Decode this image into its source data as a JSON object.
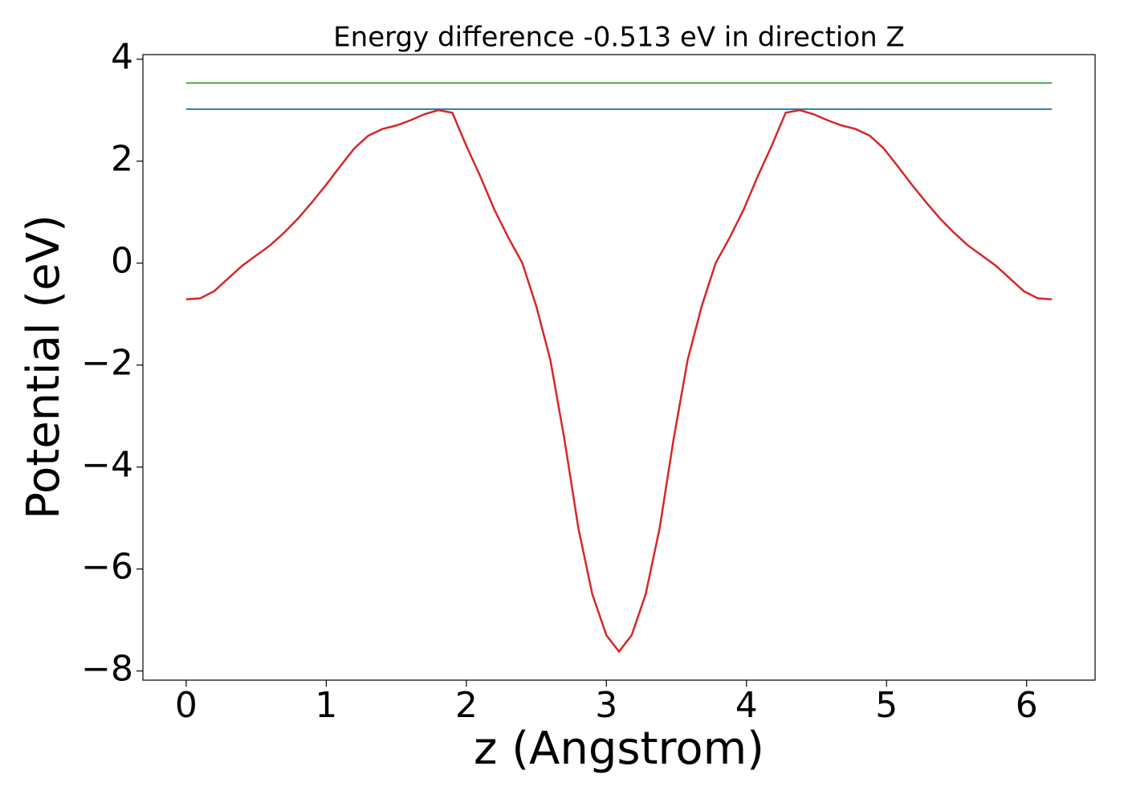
{
  "chart_data": {
    "type": "line",
    "title": "Energy difference -0.513 eV in direction Z",
    "xlabel": "z (Angstrom)",
    "ylabel": "Potential (eV)",
    "xlim": [
      -0.309,
      6.489
    ],
    "ylim": [
      -8.18,
      4.09
    ],
    "xticks": [
      0,
      1,
      2,
      3,
      4,
      5,
      6
    ],
    "yticks": [
      {
        "value": -8,
        "label": "−8"
      },
      {
        "value": -6,
        "label": "−6"
      },
      {
        "value": -4,
        "label": "−4"
      },
      {
        "value": -2,
        "label": "−2"
      },
      0,
      2,
      4
    ],
    "series": [
      {
        "color": "#d62728",
        "x": [
          0,
          0.1,
          0.2,
          0.3,
          0.4,
          0.5,
          0.6,
          0.7,
          0.8,
          0.9,
          1.0,
          1.1,
          1.2,
          1.3,
          1.4,
          1.5,
          1.6,
          1.7,
          1.8,
          1.9,
          2.0,
          2.1,
          2.2,
          2.3,
          2.4,
          2.5,
          2.6,
          2.7,
          2.8,
          2.9,
          3.0,
          3.09,
          3.18,
          3.28,
          3.38,
          3.48,
          3.58,
          3.68,
          3.78,
          3.88,
          3.98,
          4.08,
          4.18,
          4.28,
          4.38,
          4.48,
          4.58,
          4.68,
          4.78,
          4.88,
          4.98,
          5.08,
          5.18,
          5.28,
          5.38,
          5.48,
          5.58,
          5.68,
          5.78,
          5.88,
          5.98,
          6.08,
          6.18
        ],
        "values": [
          -0.71,
          -0.69,
          -0.55,
          -0.3,
          -0.05,
          0.15,
          0.35,
          0.6,
          0.88,
          1.2,
          1.54,
          1.9,
          2.25,
          2.5,
          2.63,
          2.7,
          2.8,
          2.92,
          3.0,
          2.95,
          2.3,
          1.7,
          1.05,
          0.5,
          0.0,
          -0.85,
          -1.9,
          -3.45,
          -5.2,
          -6.5,
          -7.3,
          -7.62,
          -7.3,
          -6.5,
          -5.2,
          -3.45,
          -1.9,
          -0.85,
          0.0,
          0.5,
          1.05,
          1.7,
          2.3,
          2.95,
          3.0,
          2.92,
          2.8,
          2.7,
          2.63,
          2.5,
          2.25,
          1.9,
          1.54,
          1.2,
          0.88,
          0.6,
          0.35,
          0.15,
          -0.05,
          -0.3,
          -0.55,
          -0.69,
          -0.71
        ]
      },
      {
        "color": "#1f77b4",
        "x": [
          0,
          6.18
        ],
        "values": [
          3.02,
          3.02
        ]
      },
      {
        "color": "#2ca02c",
        "x": [
          0,
          6.18
        ],
        "values": [
          3.533,
          3.533
        ]
      }
    ]
  }
}
